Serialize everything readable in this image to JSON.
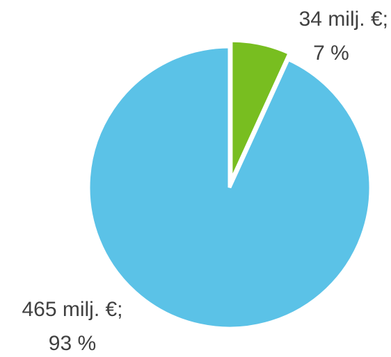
{
  "chart_data": {
    "type": "pie",
    "title": "",
    "slices": [
      {
        "value": 34,
        "percent": 7,
        "label_line1": "34 milj. €;",
        "label_line2": "7 %",
        "color": "#78BE20"
      },
      {
        "value": 465,
        "percent": 93,
        "label_line1": "465 milj. €;",
        "label_line2": "93 %",
        "color": "#5BC2E7"
      }
    ],
    "legend": "none"
  }
}
